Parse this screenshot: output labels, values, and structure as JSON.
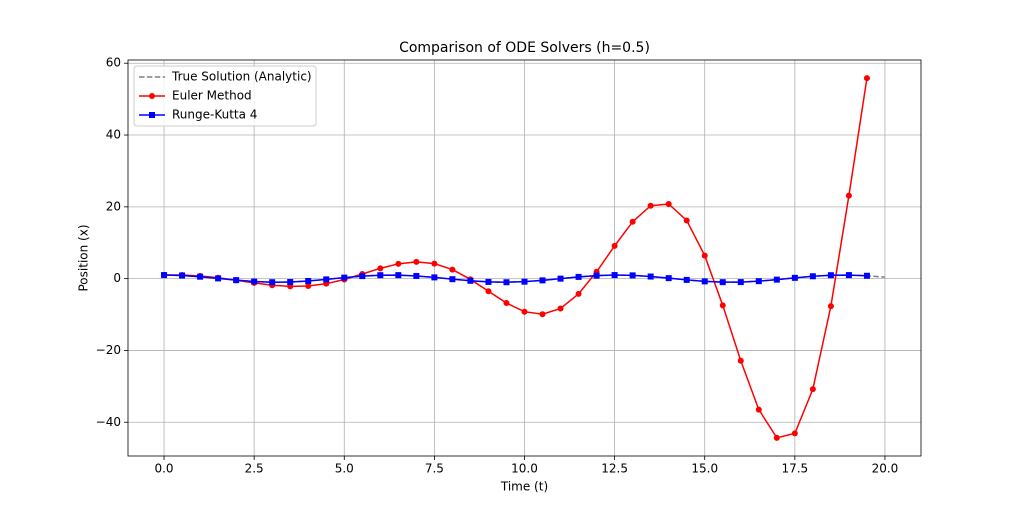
{
  "chart_data": {
    "type": "line",
    "title": "Comparison of ODE Solvers (h=0.5)",
    "x_label": "Time (t)",
    "y_label": "Position (x)",
    "xlim": [
      -1,
      21
    ],
    "ylim": [
      -49.4,
      60.9
    ],
    "xticks": [
      {
        "value": 0,
        "label": "0.0"
      },
      {
        "value": 2.5,
        "label": "2.5"
      },
      {
        "value": 5,
        "label": "5.0"
      },
      {
        "value": 7.5,
        "label": "7.5"
      },
      {
        "value": 10,
        "label": "10.0"
      },
      {
        "value": 12.5,
        "label": "12.5"
      },
      {
        "value": 15,
        "label": "15.0"
      },
      {
        "value": 17.5,
        "label": "17.5"
      },
      {
        "value": 20,
        "label": "20.0"
      }
    ],
    "yticks": [
      {
        "value": -40,
        "label": "−40"
      },
      {
        "value": -20,
        "label": "−20"
      },
      0,
      20,
      40,
      60
    ],
    "grid": true,
    "legend": "upper left",
    "series": [
      {
        "name": "True Solution (Analytic)",
        "color": "#808080",
        "linestyle": "dashed",
        "marker": "none",
        "x": [
          0,
          0.5,
          1,
          1.5,
          2,
          2.5,
          3,
          3.5,
          4,
          4.5,
          5,
          5.5,
          6,
          6.5,
          7,
          7.5,
          8,
          8.5,
          9,
          9.5,
          10,
          10.5,
          11,
          11.5,
          12,
          12.5,
          13,
          13.5,
          14,
          14.5,
          15,
          15.5,
          16,
          16.5,
          17,
          17.5,
          18,
          18.5,
          19,
          19.5,
          20
        ],
        "values": [
          1,
          0.88,
          0.54,
          0.07,
          -0.42,
          -0.8,
          -0.99,
          -0.94,
          -0.65,
          -0.21,
          0.28,
          0.71,
          0.96,
          0.98,
          0.75,
          0.35,
          -0.15,
          -0.6,
          -0.91,
          -1,
          -0.84,
          -0.48,
          0,
          0.48,
          0.84,
          1,
          0.91,
          0.59,
          0.14,
          -0.35,
          -0.76,
          -0.98,
          -0.96,
          -0.7,
          -0.28,
          0.22,
          0.66,
          0.96,
          0.99,
          0.8,
          0.41
        ]
      },
      {
        "name": "Euler Method",
        "color": "#ff0000",
        "linestyle": "solid",
        "marker": "circle",
        "x": [
          0,
          0.5,
          1,
          1.5,
          2,
          2.5,
          3,
          3.5,
          4,
          4.5,
          5,
          5.5,
          6,
          6.5,
          7,
          7.5,
          8,
          8.5,
          9,
          9.5,
          10,
          10.5,
          11,
          11.5,
          12,
          12.5,
          13,
          13.5,
          14,
          14.5,
          15,
          15.5,
          16,
          16.5,
          17,
          17.5,
          18,
          18.5,
          19,
          19.5
        ],
        "values": [
          1,
          1,
          0.75,
          0.25,
          -0.44,
          -1.19,
          -1.83,
          -2.17,
          -2.06,
          -1.4,
          -0.23,
          1.29,
          2.87,
          4.13,
          4.67,
          4.17,
          2.52,
          -0.19,
          -3.52,
          -6.8,
          -9.21,
          -9.91,
          -8.31,
          -4.24,
          1.92,
          9.13,
          15.86,
          20.31,
          20.8,
          16.21,
          6.42,
          -7.43,
          -22.88,
          -36.47,
          -44.34,
          -43.1,
          -30.77,
          -7.66,
          23.13,
          55.85
        ]
      },
      {
        "name": "Runge-Kutta 4",
        "color": "#0000ff",
        "linestyle": "solid",
        "marker": "square",
        "x": [
          0,
          0.5,
          1,
          1.5,
          2,
          2.5,
          3,
          3.5,
          4,
          4.5,
          5,
          5.5,
          6,
          6.5,
          7,
          7.5,
          8,
          8.5,
          9,
          9.5,
          10,
          10.5,
          11,
          11.5,
          12,
          12.5,
          13,
          13.5,
          14,
          14.5,
          15,
          15.5,
          16,
          16.5,
          17,
          17.5,
          18,
          18.5,
          19,
          19.5
        ],
        "values": [
          1,
          0.88,
          0.54,
          0.07,
          -0.42,
          -0.8,
          -0.99,
          -0.94,
          -0.65,
          -0.21,
          0.28,
          0.71,
          0.96,
          0.98,
          0.75,
          0.35,
          -0.15,
          -0.6,
          -0.91,
          -1,
          -0.84,
          -0.48,
          0,
          0.48,
          0.84,
          1,
          0.91,
          0.59,
          0.14,
          -0.35,
          -0.76,
          -0.98,
          -0.96,
          -0.7,
          -0.28,
          0.22,
          0.66,
          0.96,
          0.99,
          0.8
        ]
      }
    ]
  }
}
